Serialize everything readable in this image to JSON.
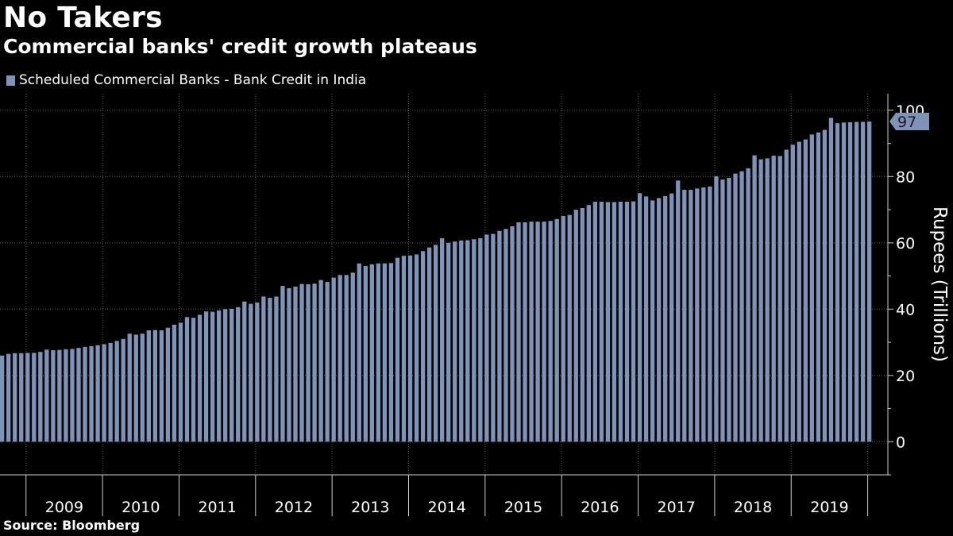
{
  "header": {
    "title": "No Takers",
    "subtitle": "Commercial banks' credit growth plateaus"
  },
  "legend": {
    "label": "Scheduled Commercial Banks - Bank Credit in India"
  },
  "footer": {
    "source": "Source: Bloomberg"
  },
  "colors": {
    "background": "#000000",
    "bar": "#7f93b8",
    "text": "#ffffff",
    "grid": "#5a5a5a"
  },
  "chart_data": {
    "type": "bar",
    "title": "No Takers",
    "subtitle": "Commercial banks' credit growth plateaus",
    "ylabel": "Rupees (Trillions)",
    "xlabel": "",
    "ylim": [
      -10,
      105
    ],
    "yticks": [
      0,
      20,
      40,
      60,
      80,
      100
    ],
    "grid": true,
    "legend_position": "top-left",
    "last_value_label": "97",
    "x_year_labels": [
      "2009",
      "2010",
      "2011",
      "2012",
      "2013",
      "2014",
      "2015",
      "2016",
      "2017",
      "2018",
      "2019"
    ],
    "x_start": "2008-09",
    "frequency": "monthly",
    "series": [
      {
        "name": "Scheduled Commercial Banks - Bank Credit in India",
        "values": [
          26.0,
          26.5,
          26.7,
          26.7,
          26.8,
          26.8,
          27.1,
          27.8,
          27.6,
          27.7,
          27.9,
          28.0,
          28.3,
          28.6,
          28.8,
          29.1,
          29.4,
          29.8,
          30.4,
          31.0,
          32.6,
          32.3,
          32.6,
          33.6,
          33.7,
          33.6,
          34.4,
          35.3,
          35.9,
          37.6,
          37.4,
          38.3,
          39.3,
          39.2,
          39.6,
          40.0,
          40.1,
          40.6,
          42.3,
          41.6,
          42.0,
          43.8,
          43.4,
          43.8,
          47.0,
          46.3,
          46.8,
          47.6,
          47.5,
          47.7,
          48.8,
          48.2,
          49.5,
          50.3,
          50.3,
          51.0,
          53.8,
          53.0,
          53.5,
          53.8,
          53.8,
          53.9,
          55.5,
          56.1,
          56.2,
          56.5,
          57.5,
          58.6,
          59.4,
          61.4,
          60.0,
          60.4,
          60.7,
          60.8,
          61.1,
          61.4,
          62.5,
          62.7,
          63.6,
          64.2,
          65.0,
          66.2,
          66.2,
          66.4,
          66.4,
          66.4,
          66.6,
          67.2,
          68.1,
          68.4,
          70.0,
          70.5,
          71.4,
          72.4,
          72.4,
          72.3,
          72.3,
          72.4,
          72.4,
          72.5,
          75.0,
          74.0,
          72.8,
          73.5,
          74.1,
          74.9,
          78.8,
          76.0,
          76.0,
          76.4,
          76.7,
          77.0,
          80.1,
          79.1,
          79.6,
          80.9,
          81.6,
          82.5,
          86.4,
          85.2,
          85.5,
          86.3,
          86.2,
          88.1,
          89.6,
          90.5,
          91.2,
          92.7,
          93.3,
          94.1,
          97.7,
          96.1,
          96.3,
          96.4,
          96.5,
          96.5,
          96.6
        ]
      }
    ]
  }
}
